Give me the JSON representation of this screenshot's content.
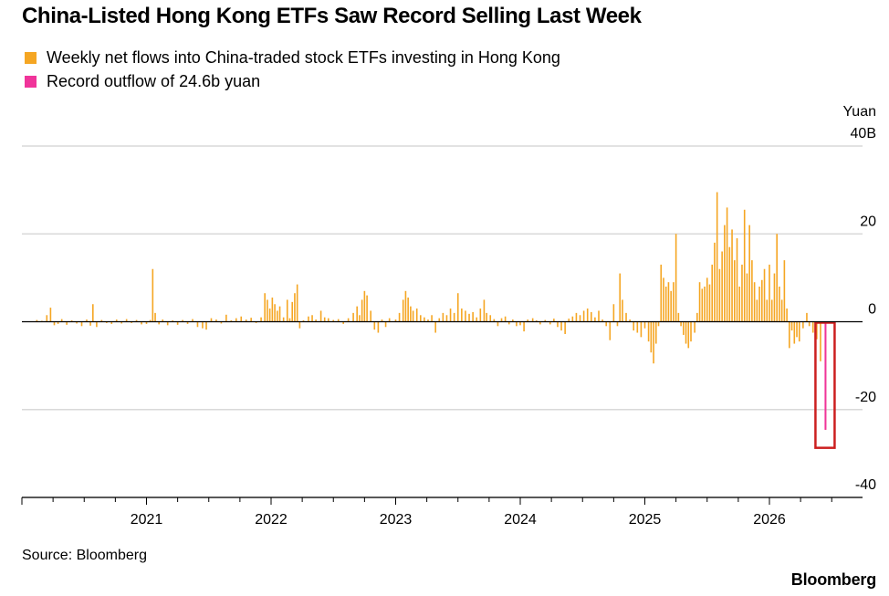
{
  "title": "China-Listed Hong Kong ETFs Saw Record Selling Last Week",
  "legend": [
    {
      "label": "Weekly net flows into China-traded stock ETFs investing in Hong Kong",
      "color": "#f5a623"
    },
    {
      "label": "Record outflow of 24.6b yuan",
      "color": "#f0349a"
    }
  ],
  "source": "Source: Bloomberg",
  "brand": "Bloomberg",
  "colors": {
    "bar": "#f5a623",
    "highlight": "#f0349a",
    "box": "#cc1f1f",
    "grid": "#d9d9d9"
  },
  "chart_data": {
    "type": "bar",
    "title": "China-Listed Hong Kong ETFs Saw Record Selling Last Week",
    "ylabel": "Yuan",
    "y_unit_label": "Yuan",
    "ylim": [
      -40,
      40
    ],
    "y_ticks": [
      {
        "value": 40,
        "label": "40B"
      },
      {
        "value": 20,
        "label": "20"
      },
      {
        "value": 0,
        "label": "0"
      },
      {
        "value": -20,
        "label": "-20"
      },
      {
        "value": -40,
        "label": "-40"
      }
    ],
    "xlim": [
      2020.0,
      2026.7
    ],
    "x_ticks": [
      {
        "value": 2021,
        "label": "2021"
      },
      {
        "value": 2022,
        "label": "2022"
      },
      {
        "value": 2023,
        "label": "2023"
      },
      {
        "value": 2024,
        "label": "2024"
      },
      {
        "value": 2025,
        "label": "2025"
      },
      {
        "value": 2026,
        "label": "2026"
      }
    ],
    "grid": true,
    "legend_position": "top-left",
    "highlight": {
      "x": 2026.45,
      "value": -24.6,
      "label": "Record outflow of 24.6b yuan"
    },
    "series": [
      {
        "name": "Weekly net flows into China-traded stock ETFs investing in Hong Kong",
        "points": [
          [
            2020.12,
            0.4
          ],
          [
            2020.16,
            0.2
          ],
          [
            2020.2,
            1.5
          ],
          [
            2020.23,
            3.2
          ],
          [
            2020.26,
            -0.8
          ],
          [
            2020.29,
            -0.5
          ],
          [
            2020.32,
            0.6
          ],
          [
            2020.36,
            -0.7
          ],
          [
            2020.4,
            0.3
          ],
          [
            2020.44,
            -0.4
          ],
          [
            2020.48,
            -1.0
          ],
          [
            2020.52,
            0.5
          ],
          [
            2020.55,
            -0.9
          ],
          [
            2020.57,
            4.0
          ],
          [
            2020.6,
            -1.2
          ],
          [
            2020.64,
            0.4
          ],
          [
            2020.68,
            -0.3
          ],
          [
            2020.72,
            -0.5
          ],
          [
            2020.76,
            0.5
          ],
          [
            2020.8,
            -0.4
          ],
          [
            2020.84,
            0.6
          ],
          [
            2020.88,
            -0.3
          ],
          [
            2020.92,
            0.4
          ],
          [
            2020.96,
            -0.6
          ],
          [
            2021.0,
            -0.5
          ],
          [
            2021.03,
            0.4
          ],
          [
            2021.05,
            12.0
          ],
          [
            2021.07,
            2.0
          ],
          [
            2021.1,
            -0.6
          ],
          [
            2021.13,
            0.5
          ],
          [
            2021.17,
            -0.8
          ],
          [
            2021.21,
            0.3
          ],
          [
            2021.25,
            -0.7
          ],
          [
            2021.29,
            0.4
          ],
          [
            2021.33,
            -0.5
          ],
          [
            2021.37,
            0.6
          ],
          [
            2021.41,
            -1.2
          ],
          [
            2021.45,
            -1.5
          ],
          [
            2021.48,
            -1.8
          ],
          [
            2021.52,
            0.8
          ],
          [
            2021.56,
            0.5
          ],
          [
            2021.6,
            -0.4
          ],
          [
            2021.64,
            1.6
          ],
          [
            2021.68,
            0.3
          ],
          [
            2021.72,
            0.8
          ],
          [
            2021.76,
            1.2
          ],
          [
            2021.8,
            0.5
          ],
          [
            2021.84,
            0.9
          ],
          [
            2021.88,
            -0.3
          ],
          [
            2021.92,
            1.0
          ],
          [
            2021.95,
            6.5
          ],
          [
            2021.97,
            5.0
          ],
          [
            2021.99,
            3.0
          ],
          [
            2022.01,
            5.5
          ],
          [
            2022.03,
            4.0
          ],
          [
            2022.05,
            2.5
          ],
          [
            2022.07,
            3.5
          ],
          [
            2022.1,
            1.0
          ],
          [
            2022.13,
            5.0
          ],
          [
            2022.15,
            0.8
          ],
          [
            2022.17,
            4.5
          ],
          [
            2022.19,
            6.5
          ],
          [
            2022.21,
            8.5
          ],
          [
            2022.23,
            -1.5
          ],
          [
            2022.26,
            0.3
          ],
          [
            2022.3,
            1.2
          ],
          [
            2022.33,
            1.5
          ],
          [
            2022.36,
            0.5
          ],
          [
            2022.4,
            2.5
          ],
          [
            2022.43,
            1.0
          ],
          [
            2022.46,
            0.8
          ],
          [
            2022.5,
            0.4
          ],
          [
            2022.54,
            0.6
          ],
          [
            2022.58,
            -0.5
          ],
          [
            2022.62,
            0.8
          ],
          [
            2022.66,
            2.0
          ],
          [
            2022.69,
            3.5
          ],
          [
            2022.71,
            1.5
          ],
          [
            2022.73,
            5.0
          ],
          [
            2022.75,
            7.0
          ],
          [
            2022.77,
            6.0
          ],
          [
            2022.8,
            2.5
          ],
          [
            2022.83,
            -1.8
          ],
          [
            2022.86,
            -2.5
          ],
          [
            2022.89,
            0.5
          ],
          [
            2022.92,
            -1.2
          ],
          [
            2022.95,
            0.8
          ],
          [
            2023.0,
            0.5
          ],
          [
            2023.03,
            2.0
          ],
          [
            2023.06,
            5.0
          ],
          [
            2023.08,
            7.0
          ],
          [
            2023.1,
            5.5
          ],
          [
            2023.12,
            3.5
          ],
          [
            2023.14,
            2.5
          ],
          [
            2023.17,
            3.0
          ],
          [
            2023.2,
            1.5
          ],
          [
            2023.23,
            1.0
          ],
          [
            2023.26,
            0.5
          ],
          [
            2023.29,
            1.5
          ],
          [
            2023.32,
            -2.5
          ],
          [
            2023.35,
            0.8
          ],
          [
            2023.38,
            2.0
          ],
          [
            2023.41,
            1.5
          ],
          [
            2023.44,
            3.0
          ],
          [
            2023.47,
            2.0
          ],
          [
            2023.5,
            6.5
          ],
          [
            2023.53,
            3.0
          ],
          [
            2023.56,
            2.5
          ],
          [
            2023.59,
            1.8
          ],
          [
            2023.62,
            2.2
          ],
          [
            2023.65,
            1.0
          ],
          [
            2023.68,
            3.0
          ],
          [
            2023.71,
            5.0
          ],
          [
            2023.73,
            2.0
          ],
          [
            2023.76,
            1.5
          ],
          [
            2023.79,
            0.6
          ],
          [
            2023.82,
            -1.0
          ],
          [
            2023.85,
            0.8
          ],
          [
            2023.88,
            1.2
          ],
          [
            2023.91,
            -0.6
          ],
          [
            2023.94,
            0.5
          ],
          [
            2023.97,
            -1.0
          ],
          [
            2024.0,
            -0.8
          ],
          [
            2024.03,
            -2.2
          ],
          [
            2024.06,
            0.5
          ],
          [
            2024.1,
            0.8
          ],
          [
            2024.13,
            0.3
          ],
          [
            2024.16,
            -0.6
          ],
          [
            2024.2,
            0.4
          ],
          [
            2024.24,
            -0.6
          ],
          [
            2024.27,
            0.7
          ],
          [
            2024.3,
            -1.2
          ],
          [
            2024.33,
            -2.0
          ],
          [
            2024.36,
            -2.8
          ],
          [
            2024.39,
            0.7
          ],
          [
            2024.42,
            1.2
          ],
          [
            2024.45,
            2.0
          ],
          [
            2024.48,
            1.5
          ],
          [
            2024.51,
            2.5
          ],
          [
            2024.54,
            3.0
          ],
          [
            2024.57,
            2.2
          ],
          [
            2024.6,
            1.0
          ],
          [
            2024.63,
            2.5
          ],
          [
            2024.66,
            0.5
          ],
          [
            2024.69,
            -1.0
          ],
          [
            2024.72,
            -4.2
          ],
          [
            2024.75,
            4.0
          ],
          [
            2024.78,
            -1.0
          ],
          [
            2024.8,
            11.0
          ],
          [
            2024.82,
            5.0
          ],
          [
            2024.85,
            2.0
          ],
          [
            2024.88,
            0.5
          ],
          [
            2024.91,
            -2.0
          ],
          [
            2024.94,
            -2.5
          ],
          [
            2024.97,
            -3.5
          ],
          [
            2025.0,
            -1.5
          ],
          [
            2025.03,
            -4.5
          ],
          [
            2025.05,
            -7.0
          ],
          [
            2025.07,
            -9.5
          ],
          [
            2025.09,
            -5.0
          ],
          [
            2025.11,
            -1.0
          ],
          [
            2025.13,
            13.0
          ],
          [
            2025.15,
            10.0
          ],
          [
            2025.17,
            8.0
          ],
          [
            2025.19,
            9.0
          ],
          [
            2025.21,
            7.0
          ],
          [
            2025.23,
            9.0
          ],
          [
            2025.25,
            20.0
          ],
          [
            2025.27,
            2.0
          ],
          [
            2025.29,
            -1.0
          ],
          [
            2025.31,
            -3.0
          ],
          [
            2025.33,
            -5.0
          ],
          [
            2025.35,
            -6.0
          ],
          [
            2025.37,
            -4.5
          ],
          [
            2025.4,
            -2.5
          ],
          [
            2025.42,
            2.0
          ],
          [
            2025.44,
            9.0
          ],
          [
            2025.46,
            7.5
          ],
          [
            2025.48,
            8.0
          ],
          [
            2025.5,
            10.0
          ],
          [
            2025.52,
            8.5
          ],
          [
            2025.54,
            13.0
          ],
          [
            2025.56,
            18.0
          ],
          [
            2025.58,
            29.5
          ],
          [
            2025.6,
            12.0
          ],
          [
            2025.62,
            16.0
          ],
          [
            2025.64,
            22.0
          ],
          [
            2025.66,
            26.0
          ],
          [
            2025.68,
            17.0
          ],
          [
            2025.7,
            21.0
          ],
          [
            2025.72,
            14.0
          ],
          [
            2025.74,
            19.0
          ],
          [
            2025.76,
            8.0
          ],
          [
            2025.78,
            13.0
          ],
          [
            2025.8,
            25.5
          ],
          [
            2025.82,
            11.0
          ],
          [
            2025.84,
            22.0
          ],
          [
            2025.86,
            14.0
          ],
          [
            2025.88,
            9.0
          ],
          [
            2025.9,
            5.0
          ],
          [
            2025.92,
            8.0
          ],
          [
            2025.94,
            9.5
          ],
          [
            2025.96,
            12.0
          ],
          [
            2025.98,
            5.0
          ],
          [
            2026.0,
            13.0
          ],
          [
            2026.02,
            5.0
          ],
          [
            2026.04,
            11.0
          ],
          [
            2026.06,
            20.0
          ],
          [
            2026.08,
            8.0
          ],
          [
            2026.1,
            5.0
          ],
          [
            2026.12,
            14.0
          ],
          [
            2026.14,
            3.0
          ],
          [
            2026.16,
            -6.0
          ],
          [
            2026.18,
            -2.0
          ],
          [
            2026.2,
            -5.0
          ],
          [
            2026.22,
            -3.5
          ],
          [
            2026.24,
            -4.5
          ],
          [
            2026.27,
            -1.5
          ],
          [
            2026.3,
            2.0
          ],
          [
            2026.32,
            -1.0
          ],
          [
            2026.35,
            -2.5
          ],
          [
            2026.38,
            -4.0
          ],
          [
            2026.41,
            -9.0
          ],
          [
            2026.45,
            -24.6
          ]
        ]
      }
    ]
  }
}
